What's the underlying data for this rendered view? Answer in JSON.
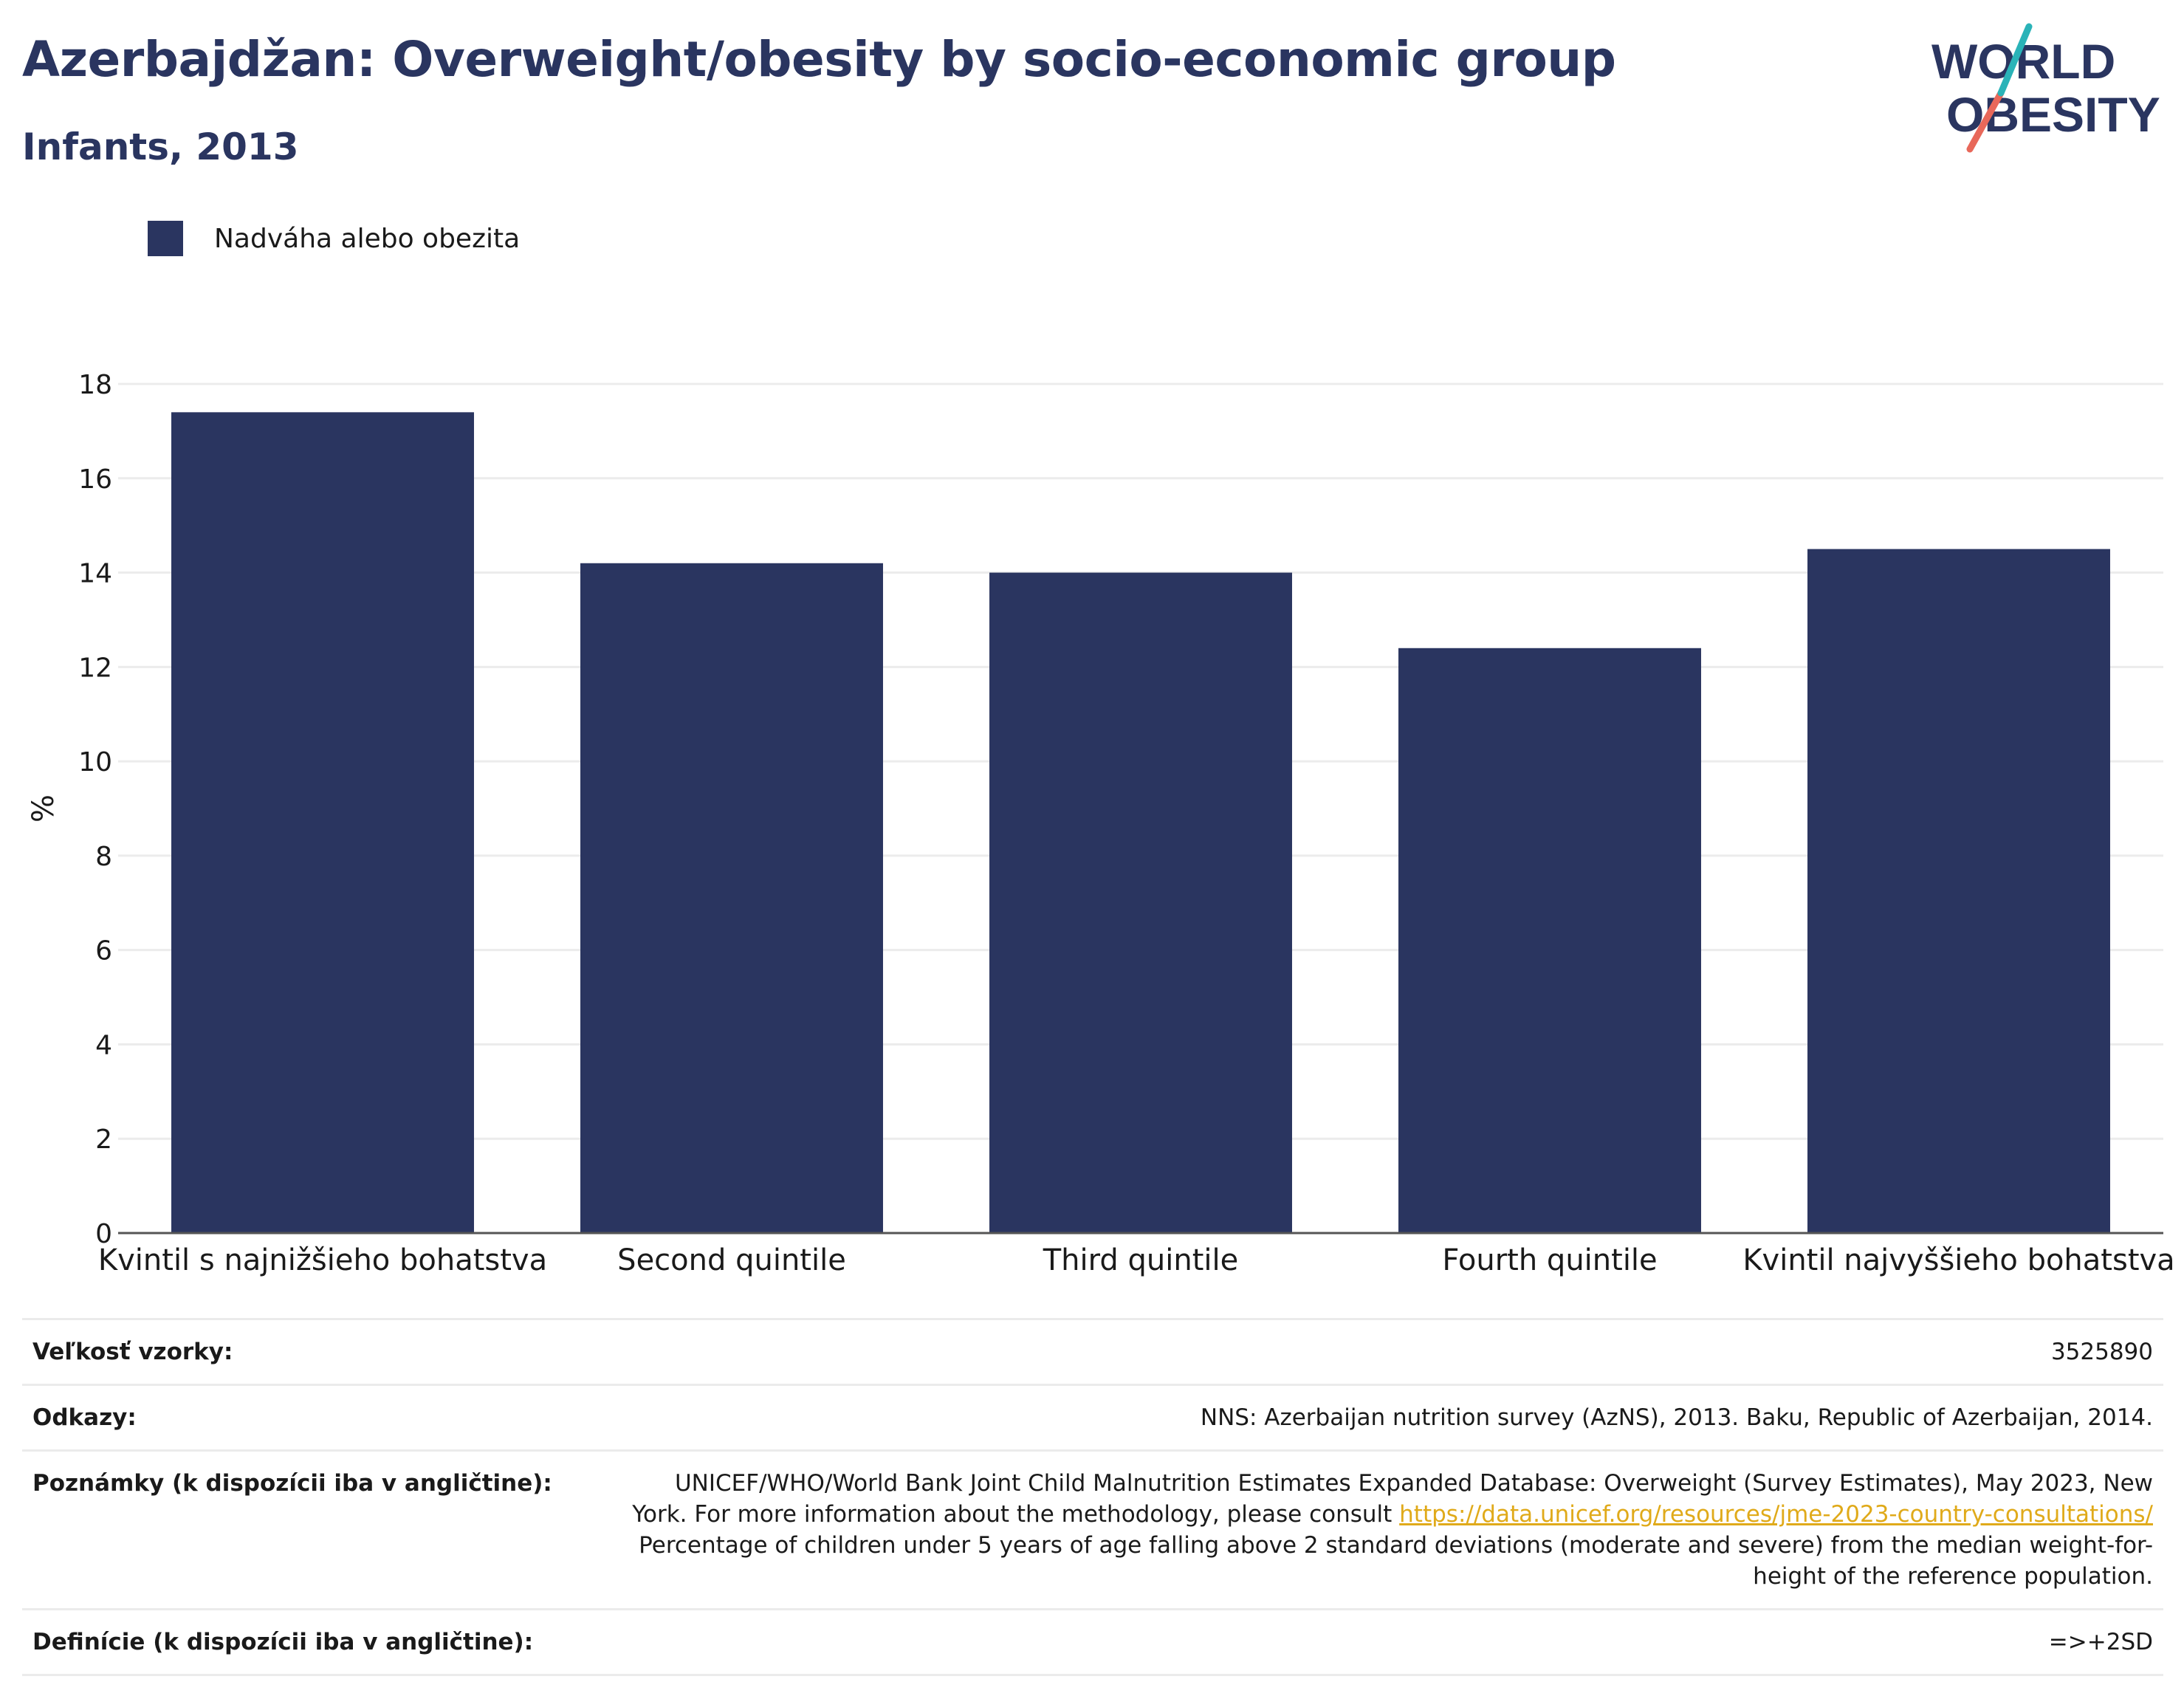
{
  "header": {
    "title": "Azerbajdžan: Overweight/obesity by socio-economic group",
    "subtitle": "Infants, 2013"
  },
  "logo": {
    "line1": "WORLD",
    "line2": "OBESITY"
  },
  "colors": {
    "bar": "#2a3560",
    "title": "#2a3560",
    "logo_teal": "#2ab3b8",
    "logo_coral": "#e8685a",
    "link": "#e0aa1a"
  },
  "chart_data": {
    "type": "bar",
    "categories": [
      "Kvintil s najnižšieho bohatstva",
      "Second quintile",
      "Third quintile",
      "Fourth quintile",
      "Kvintil najvyššieho bohatstva"
    ],
    "series": [
      {
        "name": "Nadváha alebo obezita",
        "values": [
          17.4,
          14.2,
          14.0,
          12.4,
          14.5
        ]
      }
    ],
    "ylabel": "%",
    "ylim": [
      0,
      18
    ],
    "yticks": [
      0,
      2,
      4,
      6,
      8,
      10,
      12,
      14,
      16,
      18
    ],
    "grid": true,
    "legend": "top-left"
  },
  "info": {
    "sample_label": "Veľkosť vzorky:",
    "sample_value": "3525890",
    "refs_label": "Odkazy:",
    "refs_value": "NNS: Azerbaijan nutrition survey (AzNS), 2013. Baku, Republic of Azerbaijan, 2014.",
    "notes_label": "Poznámky (k dispozícii iba v angličtine):",
    "notes_line1": "UNICEF/WHO/World Bank Joint Child Malnutrition Estimates Expanded Database: Overweight (Survey Estimates), May 2023, New",
    "notes_line2": "York. For more information about the methodology, please consult ",
    "notes_link": "https://data.unicef.org/resources/jme-2023-country-consultations/",
    "notes_line3": "Percentage of children under 5 years of age falling above 2 standard deviations (moderate and severe) from the median weight-for-",
    "notes_line4": "height of the reference population.",
    "defs_label": "Definície (k dispozícii iba v angličtine):",
    "defs_value": "=>+2SD"
  }
}
